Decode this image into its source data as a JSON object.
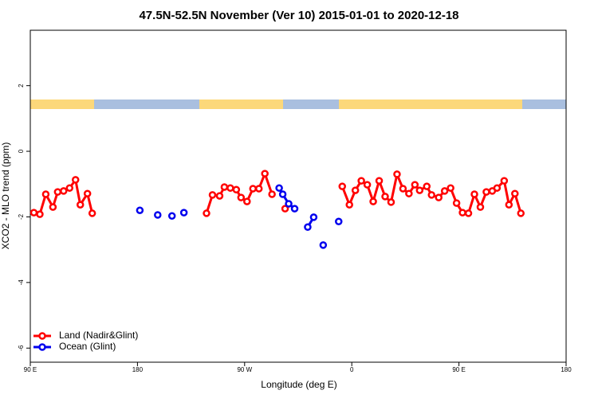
{
  "chart_data": {
    "type": "line",
    "title": "47.5N-52.5N November (Ver 10)   2015-01-01 to 2020-12-18",
    "xlabel": "Longitude (deg E)",
    "ylabel": "XCO2 - MLO trend (ppm)",
    "xlim": [
      90,
      540
    ],
    "ylim": [
      -6.43,
      3.69
    ],
    "xticks": [
      {
        "value": 90,
        "label": "90 E"
      },
      180,
      {
        "value": 270,
        "label": "90 W"
      },
      {
        "value": 360,
        "label": "0"
      },
      {
        "value": 450,
        "label": "90 E"
      },
      {
        "value": 540,
        "label": "180"
      }
    ],
    "yticks": [
      -6,
      -4,
      -2,
      0,
      2
    ],
    "legend": "bottom-left",
    "series": [
      {
        "name": "Land (Nadir&Glint)",
        "color": "#ff0000",
        "x": [
          93,
          98,
          103,
          109,
          113,
          118,
          123,
          128,
          132,
          138,
          142,
          null,
          238,
          243,
          249,
          253,
          258,
          263,
          267,
          272,
          277,
          282,
          287,
          293,
          null,
          304,
          null,
          352,
          358,
          363,
          368,
          373,
          378,
          383,
          388,
          393,
          398,
          403,
          408,
          413,
          417,
          423,
          427,
          433,
          438,
          443,
          448,
          453,
          458,
          463,
          468,
          473,
          478,
          482,
          488,
          492,
          497,
          502
        ],
        "values": [
          -1.87,
          -1.92,
          -1.31,
          -1.7,
          -1.24,
          -1.21,
          -1.12,
          -0.87,
          -1.63,
          -1.29,
          -1.89,
          null,
          -1.89,
          -1.33,
          -1.36,
          -1.09,
          -1.12,
          -1.17,
          -1.41,
          -1.53,
          -1.14,
          -1.14,
          -0.68,
          -1.31,
          null,
          -1.75,
          null,
          -1.07,
          -1.63,
          -1.19,
          -0.9,
          -1.02,
          -1.53,
          -0.9,
          -1.38,
          -1.55,
          -0.7,
          -1.14,
          -1.29,
          -1.02,
          -1.19,
          -1.07,
          -1.33,
          -1.41,
          -1.21,
          -1.12,
          -1.58,
          -1.87,
          -1.89,
          -1.31,
          -1.7,
          -1.24,
          -1.21,
          -1.12,
          -0.9,
          -1.63,
          -1.29,
          -1.89
        ]
      },
      {
        "name": "Ocean (Glint)",
        "color": "#0000ee",
        "x": [
          182,
          null,
          197,
          null,
          209,
          null,
          219,
          null,
          299,
          302,
          307,
          312,
          null,
          323,
          328,
          null,
          336,
          null,
          349
        ],
        "values": [
          -1.8,
          null,
          -1.94,
          null,
          -1.97,
          null,
          -1.87,
          null,
          -1.12,
          -1.31,
          -1.6,
          -1.75,
          null,
          -2.31,
          -2.01,
          null,
          -2.86,
          null,
          -2.14
        ]
      }
    ]
  }
}
